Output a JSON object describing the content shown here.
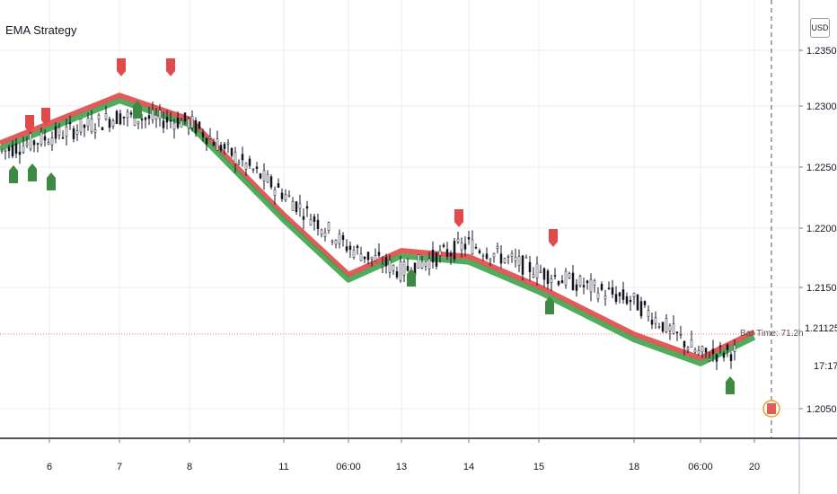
{
  "title": "EMA Strategy",
  "currency_button": "USD",
  "countdown": "17:17",
  "last_price_label": "1.21125",
  "bar_time_label": "Bar Time: 71.2h",
  "colors": {
    "background": "#ffffff",
    "grid": "#e9ecef",
    "price_line": "#e57373",
    "ema_red": "#e04848",
    "ema_green": "#3fa34d",
    "sell_marker": "#e04a4a",
    "buy_marker": "#3d8a45",
    "candle": "#131722"
  },
  "chart_data": {
    "type": "line",
    "title": "EMA Strategy",
    "xlabel": "",
    "ylabel": "",
    "x_ticks": [
      "6",
      "7",
      "8",
      "11",
      "06:00",
      "13",
      "14",
      "15",
      "18",
      "06:00",
      "20"
    ],
    "y_ticks": [
      "1.23500",
      "1.23000",
      "1.22500",
      "1.22000",
      "1.21500",
      "1.20500"
    ],
    "ylim": [
      1.201,
      1.2375
    ],
    "grid": true,
    "last_price": 1.21125,
    "series": [
      {
        "x": [
          "6",
          "7",
          "8",
          "11",
          "06:00",
          "13",
          "14",
          "15",
          "18",
          "06:00",
          "20"
        ],
        "values": [
          1.2265,
          1.2295,
          1.229,
          1.223,
          1.2185,
          1.2165,
          1.2188,
          1.2165,
          1.214,
          1.2095,
          1.21
        ]
      },
      {
        "x": [
          "6",
          "7",
          "8",
          "11",
          "06:00",
          "13",
          "14",
          "15",
          "18",
          "06:00",
          "20"
        ],
        "values": [
          1.227,
          1.231,
          1.229,
          1.221,
          1.216,
          1.218,
          1.2175,
          1.215,
          1.211,
          1.209,
          1.2112
        ]
      }
    ],
    "sell_signals": [
      "6",
      "6",
      "7",
      "8",
      "14",
      "15"
    ],
    "buy_signals": [
      "6",
      "6",
      "6",
      "7",
      "13",
      "15",
      "20"
    ]
  }
}
